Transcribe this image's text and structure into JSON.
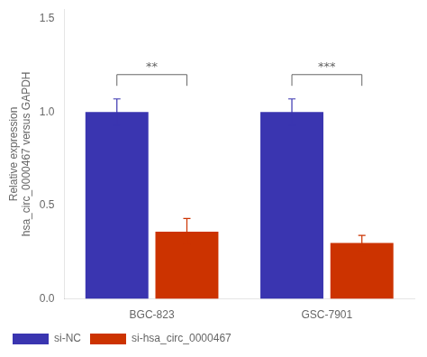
{
  "chart_data": {
    "type": "bar",
    "categories": [
      "BGC-823",
      "GSC-7901"
    ],
    "series": [
      {
        "name": "si-NC",
        "color": "#3a35b0",
        "values": [
          1.0,
          1.0
        ],
        "errors": [
          0.07,
          0.07
        ]
      },
      {
        "name": "si-hsa_circ_0000467",
        "color": "#cc3300",
        "values": [
          0.36,
          0.3
        ],
        "errors": [
          0.07,
          0.04
        ]
      }
    ],
    "ylabel": "Relative expression\nhsa_circ_0000467 versus GAPDH",
    "ylim": [
      0,
      1.55
    ],
    "yticks": [
      {
        "value": 0,
        "label": "0.0"
      },
      0.5,
      {
        "value": 1,
        "label": "1.0"
      },
      1.5
    ],
    "annotations": [
      {
        "text": "**",
        "category": "BGC-823",
        "y": 1.2,
        "y_from": 1.14
      },
      {
        "text": "***",
        "category": "GSC-7901",
        "y": 1.2,
        "y_from": 1.14
      }
    ],
    "grid": false,
    "legend": "bottom"
  }
}
